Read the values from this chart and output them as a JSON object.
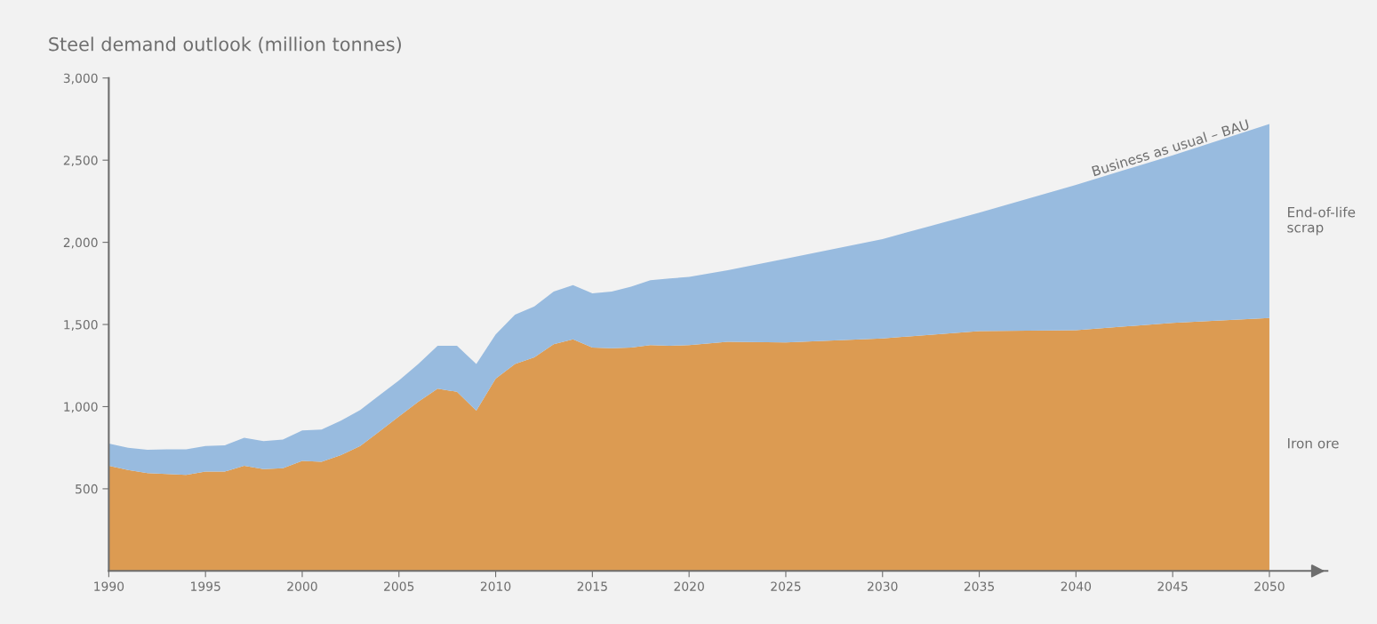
{
  "chart_data": {
    "type": "area",
    "title": "Steel demand outlook (million tonnes)",
    "stacked": true,
    "legend": false,
    "grid": false,
    "x": [
      1990,
      1991,
      1992,
      1993,
      1994,
      1995,
      1996,
      1997,
      1998,
      1999,
      2000,
      2001,
      2002,
      2003,
      2004,
      2005,
      2006,
      2007,
      2008,
      2009,
      2010,
      2011,
      2012,
      2013,
      2014,
      2015,
      2016,
      2017,
      2018,
      2019,
      2020,
      2022,
      2025,
      2030,
      2035,
      2040,
      2045,
      2050
    ],
    "series": [
      {
        "name": "Iron ore",
        "color": "#dc9b52",
        "values": [
          640,
          615,
          595,
          590,
          585,
          605,
          605,
          640,
          620,
          625,
          670,
          665,
          705,
          760,
          850,
          940,
          1030,
          1110,
          1090,
          975,
          1170,
          1260,
          1300,
          1380,
          1410,
          1360,
          1355,
          1360,
          1375,
          1370,
          1375,
          1395,
          1390,
          1415,
          1460,
          1465,
          1510,
          1540
        ]
      },
      {
        "name": "End-of-life scrap",
        "color": "#98bbdf",
        "values": [
          135,
          135,
          143,
          150,
          155,
          155,
          160,
          170,
          170,
          175,
          185,
          195,
          210,
          220,
          220,
          220,
          230,
          260,
          280,
          285,
          270,
          300,
          310,
          320,
          330,
          330,
          345,
          370,
          395,
          410,
          415,
          435,
          510,
          605,
          720,
          885,
          1020,
          1180
        ]
      }
    ],
    "annotations": [
      {
        "text": "Business as usual – BAU",
        "x": 2045,
        "y": 2530
      }
    ],
    "xlim": [
      1990,
      2053
    ],
    "xticks": [
      1990,
      1995,
      2000,
      2005,
      2010,
      2015,
      2020,
      2025,
      2030,
      2035,
      2040,
      2045,
      2050
    ],
    "ylim": [
      0,
      3000
    ],
    "yticks": [
      {
        "value": 500,
        "label": "500"
      },
      {
        "value": 1000,
        "label": "1,000"
      },
      {
        "value": 1500,
        "label": "1,500"
      },
      {
        "value": 2000,
        "label": "2,000"
      },
      {
        "value": 2500,
        "label": "2,500"
      },
      {
        "value": 3000,
        "label": "3,000"
      }
    ]
  }
}
